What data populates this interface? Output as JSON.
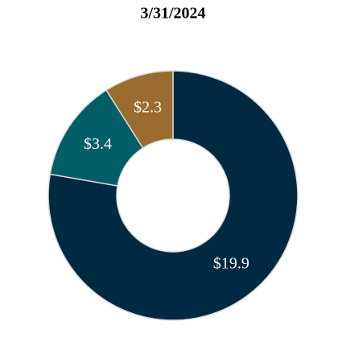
{
  "chart_data": {
    "type": "donut",
    "title": "3/31/2024",
    "values": [
      19.9,
      3.4,
      2.3
    ],
    "value_labels": [
      "$19.9",
      "$3.4",
      "$2.3"
    ],
    "colors": [
      "#002a41",
      "#005e68",
      "#9b6c2f"
    ]
  }
}
